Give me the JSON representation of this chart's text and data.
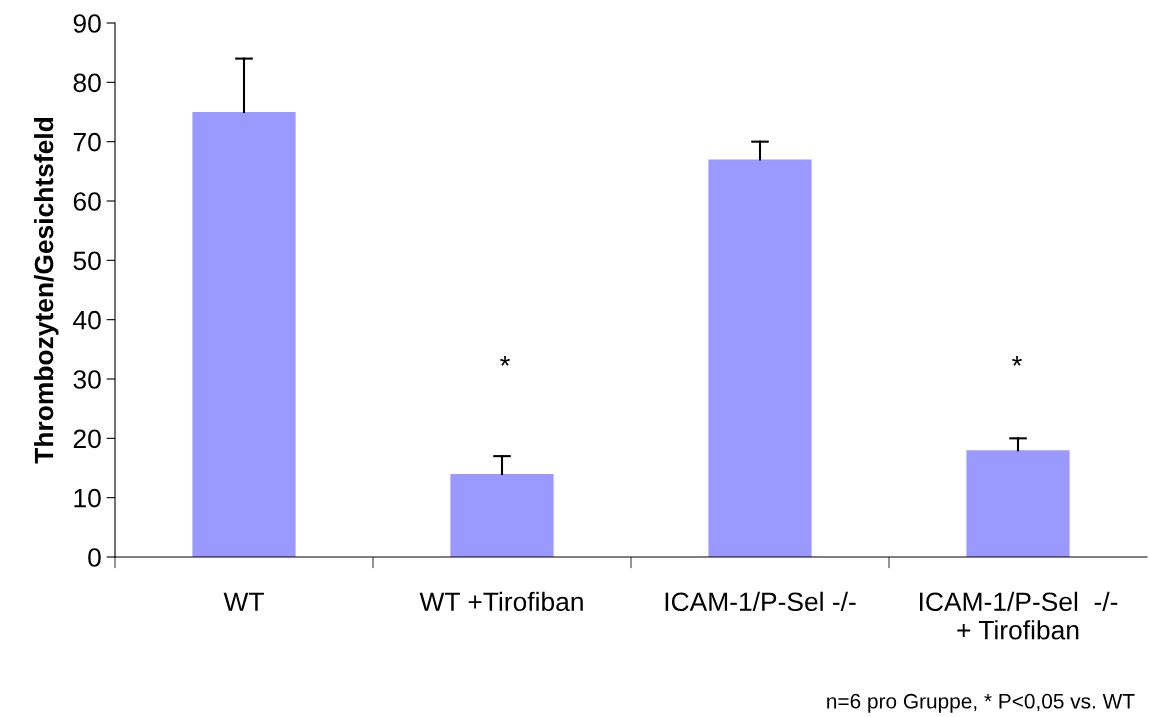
{
  "chart_data": {
    "type": "bar",
    "ylabel": "Thrombozyten/Gesichtsfeld",
    "categories": [
      "WT",
      "WT +Tirofiban",
      "ICAM-1/P-Sel -/-",
      "ICAM-1/P-Sel  -/-\n+ Tirofiban"
    ],
    "values": [
      75,
      14,
      67,
      18
    ],
    "errors": [
      [
        75,
        84
      ],
      [
        14,
        17
      ],
      [
        67,
        70
      ],
      [
        18,
        20
      ]
    ],
    "color": "#9999ff",
    "ylim": [
      0,
      90
    ],
    "yticks": [
      0,
      10,
      20,
      30,
      40,
      50,
      60,
      70,
      80,
      90
    ],
    "grid": false,
    "legend": false,
    "annotations": [
      "*",
      "*",
      "n=6 pro Gruppe, * P<0,05 vs. WT"
    ]
  }
}
